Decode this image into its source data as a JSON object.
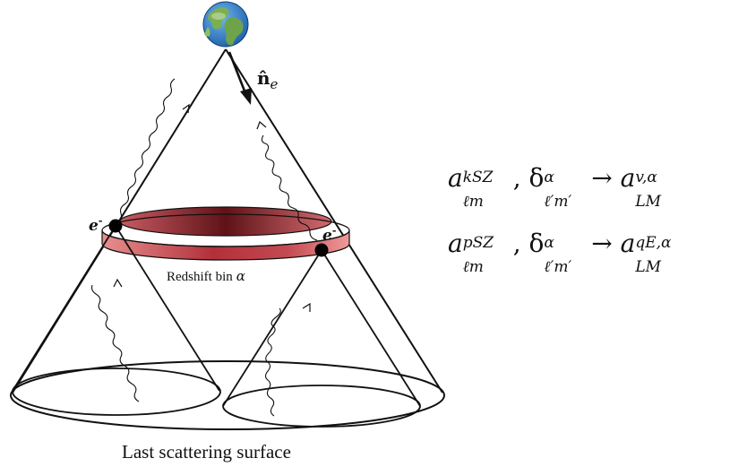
{
  "labels": {
    "normal_vector_symbol": "n̂",
    "normal_vector_subscript": "e",
    "electron_left": "e",
    "electron_right": "e",
    "electron_charge": "-",
    "redshift_bin": "Redshift bin",
    "redshift_bin_symbol": "α",
    "last_scattering": "Last scattering surface"
  },
  "equations": [
    {
      "a_sup": "kSZ",
      "a_sub": "ℓm",
      "delta_sup": "α",
      "delta_sub": "ℓ′m′",
      "rhs_sup": "v,α",
      "rhs_sub": "LM"
    },
    {
      "a_sup": "pSZ",
      "a_sub": "ℓm",
      "delta_sup": "α",
      "delta_sub": "ℓ′m′",
      "rhs_sup": "qE,α",
      "rhs_sub": "LM"
    }
  ],
  "colors": {
    "band_light": "#e48585",
    "band_dark": "#9b1f26",
    "stroke": "#111111",
    "earth_ocean": "#2f7fd0",
    "earth_land": "#6fa34a"
  }
}
